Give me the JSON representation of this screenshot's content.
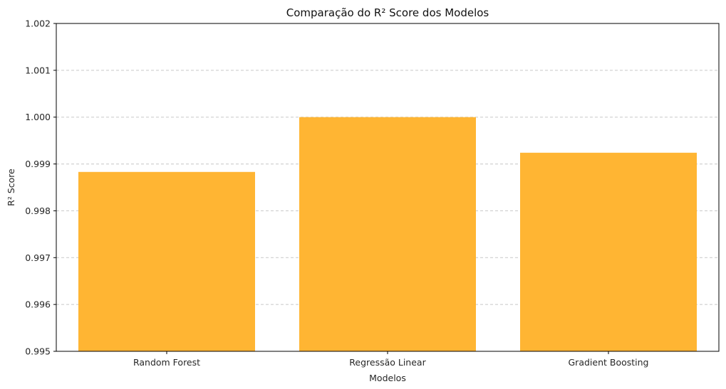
{
  "chart_data": {
    "type": "bar",
    "title": "Comparação do R² Score dos Modelos",
    "xlabel": "Modelos",
    "ylabel": "R² Score",
    "categories": [
      "Random Forest",
      "Regressão Linear",
      "Gradient Boosting"
    ],
    "values": [
      0.99883,
      1.0,
      0.99924
    ],
    "ylim": [
      0.995,
      1.002
    ],
    "yticks": [
      "0.995",
      "0.996",
      "0.997",
      "0.998",
      "0.999",
      "1.000",
      "1.001",
      "1.002"
    ],
    "grid": "y-dashed",
    "bar_color": "#ffb533",
    "legend": "none"
  }
}
